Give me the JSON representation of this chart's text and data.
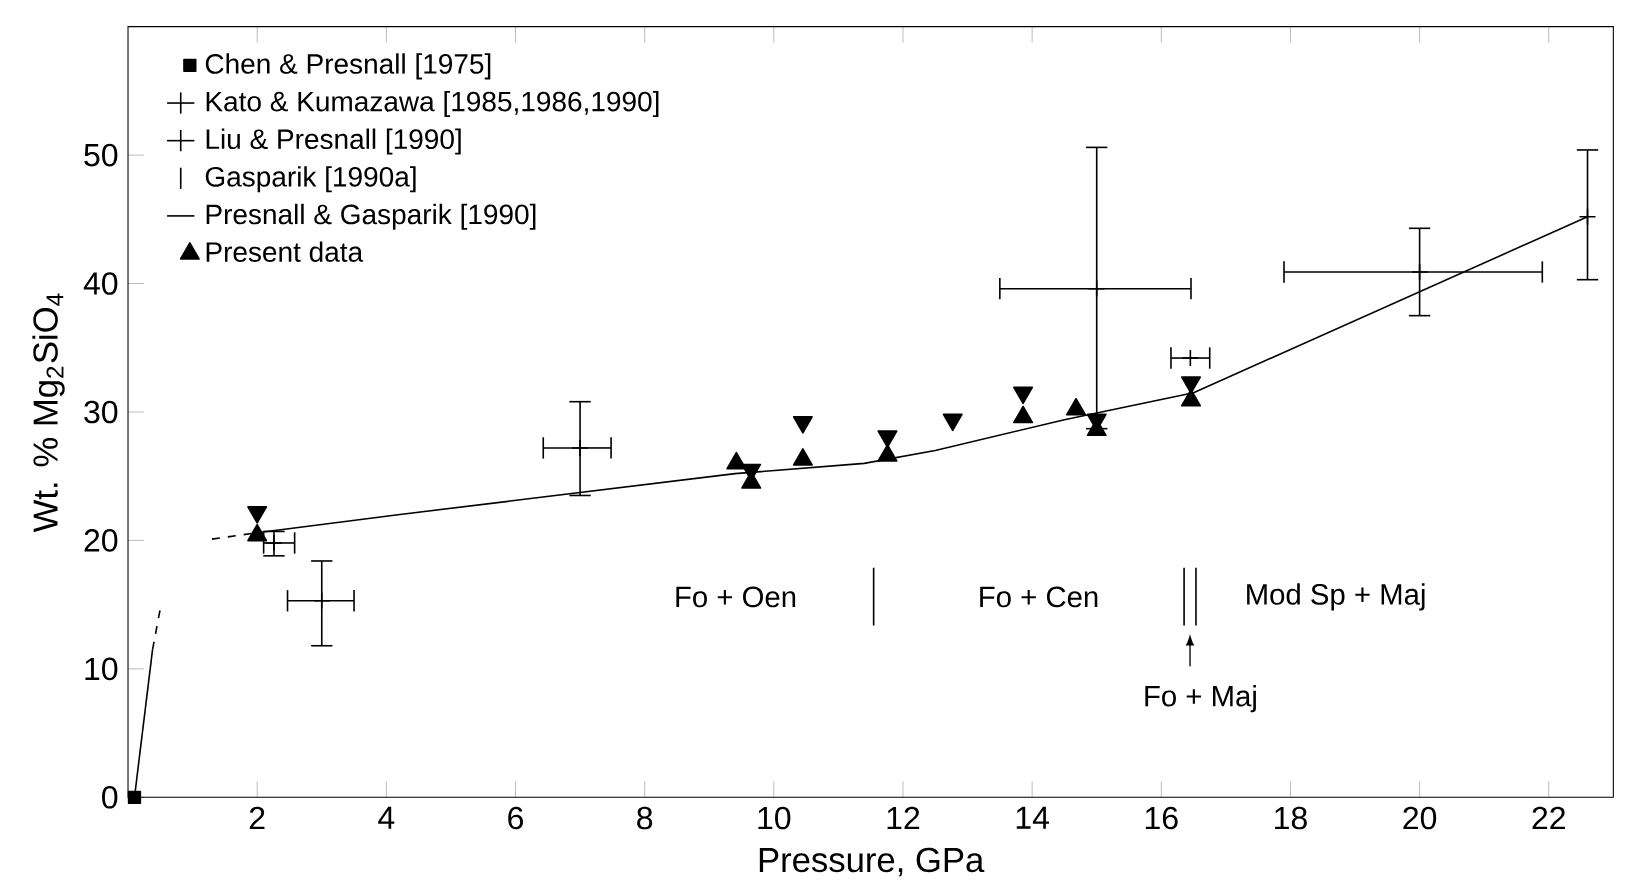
{
  "chart_data": {
    "type": "scatter",
    "xlabel": "Pressure,  GPa",
    "ylabel": "Wt. %   Mg$_{2}$SiO$_{4}$",
    "xlim": [
      0,
      23
    ],
    "ylim": [
      0,
      60
    ],
    "xticks": [
      2,
      4,
      6,
      8,
      10,
      12,
      14,
      16,
      18,
      20,
      22
    ],
    "yticks": [
      0,
      10,
      20,
      30,
      40,
      50
    ],
    "legend": "top left",
    "grid": false,
    "series": [
      {
        "name": "Chen & Presnall [1975]",
        "color": "#000000",
        "marker": "square",
        "x": [
          0.1
        ],
        "values": [
          0
        ]
      },
      {
        "name": "Kato & Kumazawa [1985,1986,1990]",
        "color": "#000000",
        "marker": "cross",
        "x": [
          3,
          7,
          15,
          20
        ],
        "values": [
          15.3,
          27.2,
          39.6,
          40.9
        ],
        "errors": [
          [
            11.8,
            18.4
          ],
          [
            23.5,
            30.8
          ],
          [
            28.7,
            50.6
          ],
          [
            37.5,
            44.3
          ]
        ],
        "xerrors": [
          [
            2.47,
            3.5
          ],
          [
            6.43,
            7.48
          ],
          [
            13.5,
            16.46
          ],
          [
            17.9,
            21.9
          ]
        ]
      },
      {
        "name": "Liu & Presnall [1990]",
        "color": "#000000",
        "marker": "cross",
        "x": [
          2.26
        ],
        "values": [
          19.8
        ],
        "errors": [
          [
            18.8,
            20.7
          ]
        ],
        "xerrors": [
          [
            2.1,
            2.58
          ]
        ]
      },
      {
        "name": "Gasparik [1990a]",
        "color": "#000000",
        "marker": "cross",
        "x": [
          22.6
        ],
        "values": [
          45.2
        ],
        "errors": [
          [
            40.3,
            50.4
          ]
        ]
      },
      {
        "name": "Presnall & Gasparik [1990]",
        "color": "#000000",
        "marker": "cross",
        "x": [
          16.45
        ],
        "values": [
          34.2
        ],
        "xerrors": [
          [
            16.15,
            16.75
          ]
        ]
      },
      {
        "name": "Present data",
        "color": "#000000",
        "marker": "triangle",
        "x": [
          2.0,
          9.42,
          9.65,
          10.45,
          11.76,
          13.86,
          14.68,
          15.0,
          16.46
        ],
        "values": [
          20.4,
          26.0,
          24.5,
          26.3,
          26.6,
          29.6,
          30.2,
          28.6,
          30.9
        ]
      },
      {
        "color": "#000000",
        "marker": "triangle down",
        "x": [
          2.0,
          9.65,
          10.45,
          11.76,
          12.77,
          13.86,
          15.0,
          16.46
        ],
        "values": [
          22.2,
          25.5,
          29.2,
          28.1,
          29.4,
          31.5,
          29.4,
          32.3
        ]
      },
      {
        "type": "line",
        "color": "#000000",
        "marker": "none",
        "line_style": "solid",
        "x": [
          2.0,
          4.18,
          9.4,
          11.4,
          12.5,
          14.5,
          16.5,
          22.6
        ],
        "values": [
          20.6,
          22.0,
          25.2,
          26.0,
          27.0,
          29.4,
          31.5,
          45.2
        ]
      },
      {
        "type": "line",
        "color": "#000000",
        "marker": "none",
        "line_style": "dashed",
        "x": [
          1.3,
          2.0
        ],
        "values": [
          20.1,
          20.6
        ]
      },
      {
        "type": "line",
        "color": "#000000",
        "marker": "none",
        "line_style": "solid",
        "x": [
          0.1,
          0.38
        ],
        "values": [
          0,
          11.5
        ]
      },
      {
        "type": "line",
        "color": "#000000",
        "marker": "none",
        "line_style": "dashed",
        "x": [
          0.38,
          0.5
        ],
        "values": [
          11.5,
          14.7
        ]
      }
    ],
    "annotations": [
      "Fo + Oen",
      "Fo + Cen",
      "Mod Sp + Maj",
      "Fo + Maj"
    ]
  }
}
